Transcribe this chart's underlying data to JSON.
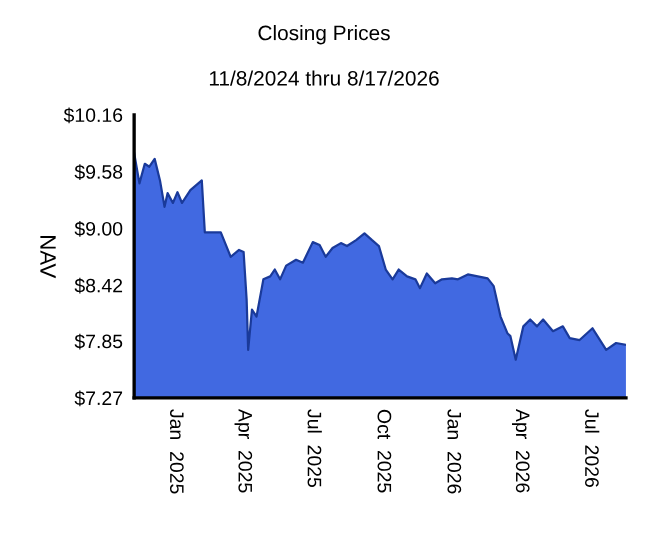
{
  "chart_data": {
    "type": "area",
    "title": "Closing Prices",
    "subtitle": "11/8/2024 thru 8/17/2026",
    "ylabel": "NAV",
    "x": [
      "2024-11-08",
      "2024-11-15",
      "2024-11-22",
      "2024-11-28",
      "2024-12-05",
      "2024-12-12",
      "2024-12-18",
      "2024-12-22",
      "2024-12-29",
      "2025-01-04",
      "2025-01-10",
      "2025-01-21",
      "2025-02-05",
      "2025-02-09",
      "2025-02-20",
      "2025-03-02",
      "2025-03-15",
      "2025-03-26",
      "2025-04-01",
      "2025-04-05",
      "2025-04-07",
      "2025-04-12",
      "2025-04-18",
      "2025-04-27",
      "2025-05-06",
      "2025-05-12",
      "2025-05-19",
      "2025-05-27",
      "2025-06-09",
      "2025-06-18",
      "2025-07-01",
      "2025-07-10",
      "2025-07-18",
      "2025-07-27",
      "2025-08-07",
      "2025-08-15",
      "2025-08-27",
      "2025-09-07",
      "2025-09-17",
      "2025-09-26",
      "2025-10-05",
      "2025-10-14",
      "2025-10-22",
      "2025-11-02",
      "2025-11-13",
      "2025-11-19",
      "2025-11-28",
      "2025-12-09",
      "2025-12-18",
      "2025-12-31",
      "2026-01-08",
      "2026-01-21",
      "2026-02-03",
      "2026-02-16",
      "2026-02-24",
      "2026-03-05",
      "2026-03-14",
      "2026-03-18",
      "2026-03-25",
      "2026-04-04",
      "2026-04-13",
      "2026-04-22",
      "2026-04-30",
      "2026-05-13",
      "2026-05-26",
      "2026-06-04",
      "2026-06-17",
      "2026-07-04",
      "2026-07-22",
      "2026-08-04",
      "2026-08-17"
    ],
    "series": [
      {
        "color": "#4169e1",
        "values": [
          9.77,
          9.46,
          9.66,
          9.63,
          9.71,
          9.49,
          9.22,
          9.36,
          9.26,
          9.37,
          9.26,
          9.39,
          9.49,
          8.96,
          8.96,
          8.96,
          8.71,
          8.78,
          8.76,
          8.27,
          7.76,
          8.17,
          8.1,
          8.48,
          8.51,
          8.58,
          8.48,
          8.62,
          8.68,
          8.65,
          8.86,
          8.83,
          8.71,
          8.8,
          8.85,
          8.82,
          8.88,
          8.95,
          8.88,
          8.82,
          8.58,
          8.48,
          8.58,
          8.51,
          8.48,
          8.39,
          8.54,
          8.44,
          8.48,
          8.49,
          8.48,
          8.53,
          8.51,
          8.49,
          8.41,
          8.1,
          7.93,
          7.9,
          7.66,
          8.0,
          8.07,
          8.0,
          8.07,
          7.95,
          8.0,
          7.88,
          7.86,
          7.98,
          7.76,
          7.83,
          7.81
        ]
      }
    ],
    "xlim": [
      "2024-11-08",
      "2026-08-17"
    ],
    "xticks": [
      {
        "value": "2025-01-01",
        "label": "Jan  2025"
      },
      {
        "value": "2025-04-01",
        "label": "Apr  2025"
      },
      {
        "value": "2025-07-01",
        "label": "Jul  2025"
      },
      {
        "value": "2025-10-01",
        "label": "Oct  2025"
      },
      {
        "value": "2026-01-01",
        "label": "Jan  2026"
      },
      {
        "value": "2026-04-01",
        "label": "Apr  2026"
      },
      {
        "value": "2026-07-01",
        "label": "Jul  2026"
      }
    ],
    "ylim": [
      7.27,
      10.16
    ],
    "yticks": [
      {
        "value": 7.27,
        "label": "$7.27"
      },
      {
        "value": 7.85,
        "label": "$7.85"
      },
      {
        "value": 8.42,
        "label": "$8.42"
      },
      {
        "value": 9.0,
        "label": "$9.00"
      },
      {
        "value": 9.58,
        "label": "$9.58"
      },
      {
        "value": 10.16,
        "label": "$10.16"
      }
    ],
    "grid": false
  }
}
